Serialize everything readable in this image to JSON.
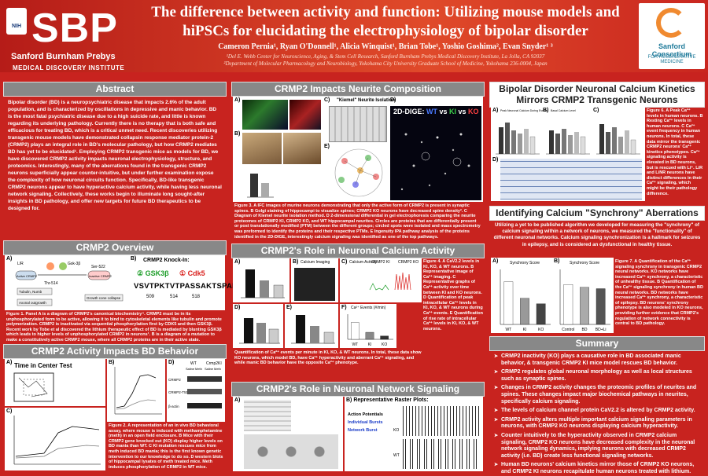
{
  "header": {
    "title": "The difference between activity and function: Utilizing mouse models and hiPSCs for elucidating the electrophysiology of bipolar disorder",
    "authors": "Cameron Pernia¹, Ryan O'Donnell¹, Alicia Winquist¹, Brian Tobe¹, Yoshio Goshima², Evan Snyder¹ ³",
    "affiliation_1": "¹Del E. Webb Center for Neuroscience, Aging, & Stem Cell Research, Sanford Burnham Prebys Medical Discovery Institute, La Jolla, CA 92037",
    "affiliation_2": "²Department of Molecular Pharmacology and Neurobiology, Yokohama City University Graduate School of Medicine, Yokohama 236-0004, Japan",
    "logo_left_letters": "SBP",
    "logo_left_name": "Sanford Burnham Prebys",
    "logo_left_sub": "MEDICAL DISCOVERY INSTITUTE",
    "nih_label": "NIH",
    "logo_right_name": "Sanford Consortium",
    "logo_right_sub": "FOR REGENERATIVE MEDICINE"
  },
  "abstract": {
    "heading": "Abstract",
    "text": "Bipolar disorder (BD) is a neuropsychiatric disease that impacts 2.6% of the adult population, and is characterized by oscillations in depressive and manic behavior. BD is the most fatal psychiatric disease due to a high suicide rate, and little is known regarding its underlying pathology. Currently there is no therapy that is both safe and efficacious for treating BD, which is a critical unmet need. Recent discoveries utilizing transgenic mouse models have demonstrated collapsin response mediator protein-2 (CRMP2) plays an integral role in BD's molecular pathology, but how CRMP2 mediates BD has yet to be elucidated¹. Employing CRMP2 transgenic mice as models for BD, we have discovered CRMP2 activity impacts neuronal electrophysiology, structure, and proteomics. Interestingly, many of the aberrations found in the transgenic CRMP2 neurons superficially appear counter-intuitive, but under further examination expose the complexity of how neuronal circuits function. Specifically, BD-like transgenic CRMP2 neurons appear to have hyperactive calcium activity, while having less neuronal network signaling. Collectively, these works begin to illuminate long sought-after insights in BD pathology, and offer new targets for future BD therapeutics to be designed for."
  },
  "crmp2_overview": {
    "heading": "CRMP2 Overview",
    "panel_a": "A)",
    "panel_b": "B)",
    "knockin_title": "CRMP2 Knock-In:",
    "gsk_label": "② GSK3β",
    "cdk_label": "① Cdk5",
    "sequence": "VSVTPKTVTPASSAKTSPAKQ",
    "seq_nums": [
      "509",
      "514",
      "518"
    ],
    "nodes": [
      "L/R",
      "Gsk-3β",
      "Ser-522",
      "Thr-514",
      "Active CRMP2",
      "Inactive CRMP2",
      "Tubulin, Numb",
      "Axonal outgrowth",
      "Growth cone collapse"
    ],
    "caption": "Figure 1. Panel A is a diagram of CRMP2's canonical biochemistry⁴. CRMP2 must be in its unphosphorylated form to be active, allowing it to bind to cytoskeletal elements like tubulin and promote polymerization. CRMP2 is inactivated via sequential phosphorylation first by CDK5 and then GSK3β. Recent work by Tobe et al discovered the lithium therapeutic effect of BD is mediated by blunting GSK3β which leads to higher levels of unphosphorylated CRMP2 in neurons¹. B is a diagram of a mutation to make a constitutively active CRMP2 mouse, where all CRMP2 proteins are in their active state."
  },
  "crmp2_behavior": {
    "heading": "CRMP2 Activity Impacts BD Behavior",
    "panel_a": "A)",
    "panel_b": "B)",
    "panel_c": "C)",
    "panel_d": "D)",
    "tcc_title": "Time in Center Test",
    "blot_labels": [
      "CRMP2",
      "CRMP2-T514",
      "β-actin"
    ],
    "blot_groups": [
      "WT",
      "Crmp2KI"
    ],
    "blot_conditions": [
      "Saline",
      "Meth",
      "Saline",
      "Meth"
    ],
    "caption": "Figure 2. A representation of an in vivo BD behavioral assay, where mouse is induced with methamphetamine (meth) in an open field enclosure. B Mice with their CRMP2 gene knocked out (KO) display higher levels on BD mania than WT. C KI mutation rescues mice from meth induced BD mania; this is the first known genetic intervention to our knowledge to do so. D western blots of hippocampal lysates of meth treated mice. Meth induces phosphorylation of CRMP2 in WT mice."
  },
  "neurite": {
    "heading": "CRMP2 Impacts Neurite Composition",
    "panel_a": "A)",
    "panel_b": "B)",
    "panel_c": "C)",
    "panel_d": "D)",
    "panel_e": "E)",
    "kiemel_title": "\"Kiemel\" Neurite Isolation",
    "dige_prefix": "2D-DIGE: ",
    "dige_wt": "WT",
    "dige_vs1": " vs ",
    "dige_ki": "KI",
    "dige_vs2": " vs ",
    "dige_ko": "KO",
    "caption": "Figure 3. A IFC images of murine neurons demonstrating that only the active form of CRMP2 is present in synaptic spines. B Golgi staining of hippocampi to visualize spines; CRMP2 KO neurons have decreased spine density². C Diagram of Kiemel neurite isolation method. D 2-dimensional differential in gel electrophoresis comparing the neurite proteomes of CRMP2 KI, CRMP2 KO, and WT hippocampal neurites. Circles are proteins that are differentially present or post translationally modified (PTM) between the different groups; circled spots were isolated and mass spectrometry was preformed to identify the proteins and their respective PTMs. E Ingenuity IPA pathway analysis of the proteins identified in the 2D-DIGE, interestingly calcium signaling was identified as one of the top pathways."
  },
  "calcium": {
    "heading": "CRMP2's Role in Neuronal Calcium Activity",
    "panel_a": "A)",
    "panel_b": "B)",
    "panel_c": "C)",
    "panel_d": "D)",
    "panel_e": "E)",
    "panel_f": "F)",
    "b_title": "Calcium Imaging",
    "c_title": "Calcium Activity",
    "trace_labels": [
      "CRMP2 KI",
      "CRMP2 KO"
    ],
    "f_title": "Ca²⁺ Events (#/min)",
    "f_categories": [
      "WT",
      "KI",
      "KO"
    ],
    "caption_right": "Figure 4. A CaV2.2 levels in KI, KO, & WT neurons. B Representative image of Ca²⁺ imaging. C Representative graphs of Ca²⁺ activity over time between KI and KO neurons. D Quantification of peak intracellular Ca²⁺ levels in KI, KO, & WT neurons during Ca²⁺ events. E Quantification of rise rate of intracellular Ca²⁺ levels in KI, KO, & WT neurons.",
    "caption_bottom": "Quantification of Ca²⁺ events per minute in KI, KO, & WT neurons. In total, these data show KO neurons, which model BD, have Ca²⁺ hyperactivity and aberrant Ca²⁺ signaling, and while manic BD behavior have the opposite Ca²⁺ phenotype."
  },
  "network": {
    "heading": "CRMP2's Role in Neuronal Network Signaling",
    "panel_a": "A)",
    "panel_b": "B) Representative Raster Plots:",
    "legend_title": "Action Potentials",
    "legend_individual": "Individual Bursts",
    "legend_network": "Network Burst",
    "raster_labels": [
      "KO",
      "WT"
    ]
  },
  "bipolar_kinetics": {
    "heading_line1": "Bipolar Disorder Neuronal Calcium Kinetics",
    "heading_line2": "Mirrors CRMP2 Transgenic Neurons",
    "panel_a": "A)",
    "panel_b": "B)",
    "panel_c": "C)",
    "panel_d": "D)",
    "chart_titles": [
      "Peak Neuronal Calcium During Events",
      "Basal Calcium Level",
      ""
    ],
    "caption": "Figure 6. A Peak Ca²⁺ levels in human neurons. B Resting Ca²⁺ levels in human neurons. C Ca²⁺ event frequency in human neurons. In total, these data mirror the transgenic CRMP2 neurons' Ca²⁺ kinetics phenotypes. Ca²⁺ signaling activity is elevated in BD neurons, but is rescued with Li⁺. LiR and LiNR neurons have distinct differences in their Ca²⁺ signaling, which might be their pathology difference."
  },
  "synchrony": {
    "heading": "Identifying Calcium \"Synchrony\" Aberrations",
    "text": "Utilizing a yet to be published algorithm we developed for measuring the \"synchrony\" of calcium signaling within a network of neurons, we measured the \"functionality\" of different neuronal networks. Calcium signaling synchronization is a hallmark for seizures in epilepsy, and is considered an dysfunctional in healthy tissue.",
    "panel_a": "A)",
    "panel_b": "B)",
    "chart_titles": [
      "Synchrony Score",
      "Synchrony Score"
    ],
    "caption": "Figure 7. A Quantification of the Ca²⁺ signaling synchrony in transgenic CRMP2 neural networks. KO networks have increased Ca²⁺ synchrony, a characteristic of unhealthy tissue. B Quantification of the Ca²⁺ signaling synchrony in human BD neural networks. BD networks have increased Ca²⁺ synchrony, a characteristic of epilepsy. BD neurons' synchrony phenotype is also modeled in KO neurons, providing further evidence that CRMP2's regulation of network connectivity is central to BD pathology."
  },
  "summary": {
    "heading": "Summary",
    "items": [
      "CRMP2 inactivity (KO) plays a causative role in BD associated manic behavior, & transgenic CRMP2 KI mice model rescues BD behavior.",
      "CRMP2 regulates global neuronal morphology as well as local structures such as synaptic spines.",
      "Changes in CRMP2 activity changes the proteomic profiles of neurites and spines. These changes impact major biochemical pathways in neurites, specifically calcium signaling.",
      "The levels of calcium channel protein CaV2.2 is altered by CRMP2 activity.",
      "CRMP2 activity alters multiple important calcium signaling parameters in neurons, with CRMP2 KO neurons displaying calcium hyperactivity.",
      "Counter intuitively to the hyperactivity observed in CRMP2 calcium signaling, CRMP2 KO neurons have decreased complexity in the neuronal network signaling dynamics, implying neurons with decreased CRMP2 activity (i.e. BD) create less functional signaling networks.",
      "Human BD neurons' calcium kinetics mirror those of CRMP2 KO neurons, and CRMP2 KI neurons recapitulate human neurons treated with lithium."
    ]
  },
  "chart_data": [
    {
      "type": "bar",
      "title": "Ca²⁺ Events (#/min)",
      "categories": [
        "WT",
        "KI",
        "KO"
      ],
      "values": [
        100,
        42,
        20
      ],
      "ylim": [
        0,
        150
      ]
    },
    {
      "type": "bar",
      "title": "Synchrony Score",
      "categories": [
        "WT",
        "KI",
        "KO"
      ],
      "values": [
        0.62,
        0.38,
        0.3
      ],
      "ylim": [
        0,
        0.8
      ]
    },
    {
      "type": "bar",
      "title": "Synchrony Score",
      "categories": [
        "Control",
        "BD",
        "BD+Li"
      ],
      "values": [
        0.58,
        0.54,
        0.52
      ],
      "ylim": [
        0,
        0.8
      ]
    }
  ],
  "colors": {
    "background": "#c8231f",
    "heading_bg": "#888888",
    "wt_color": "#1a3cc8",
    "ki_color": "#1e9e2a",
    "ko_color": "#d9201c"
  }
}
